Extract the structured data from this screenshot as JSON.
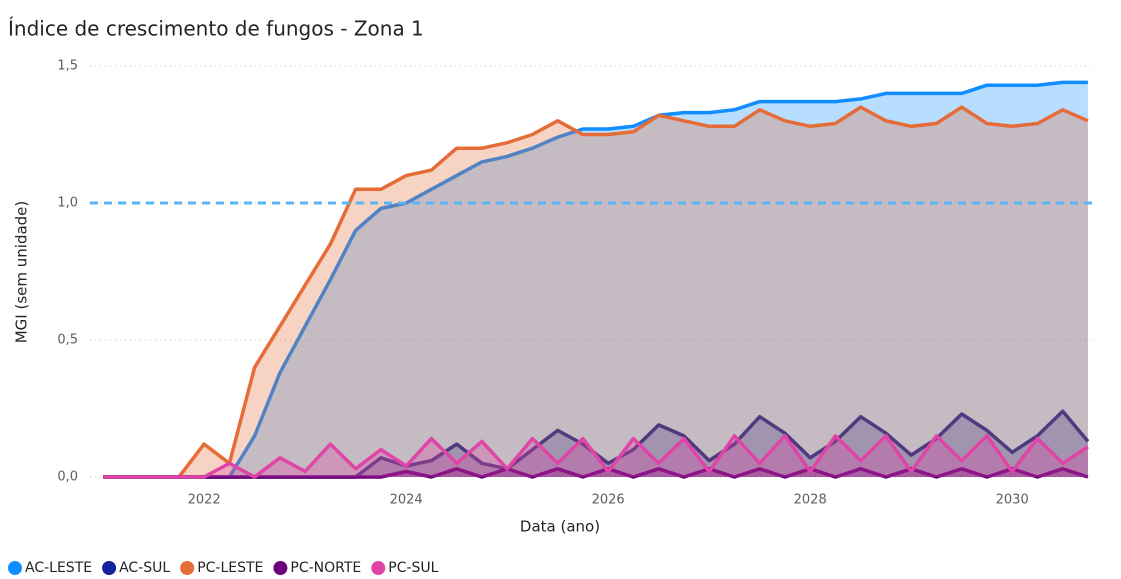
{
  "chart_data": {
    "type": "area",
    "title": "Índice de crescimento de fungos - Zona 1",
    "x_label": "Data (ano)",
    "y_label": "MGI (sem unidade)",
    "x": [
      2021,
      2021.25,
      2021.5,
      2021.75,
      2022,
      2022.25,
      2022.5,
      2022.75,
      2023,
      2023.25,
      2023.5,
      2023.75,
      2024,
      2024.25,
      2024.5,
      2024.75,
      2025,
      2025.25,
      2025.5,
      2025.75,
      2026,
      2026.25,
      2026.5,
      2026.75,
      2027,
      2027.25,
      2027.5,
      2027.75,
      2028,
      2028.25,
      2028.5,
      2028.75,
      2029,
      2029.25,
      2029.5,
      2029.75,
      2030,
      2030.25,
      2030.5,
      2030.75
    ],
    "series": [
      {
        "name": "AC-LESTE",
        "color": "#118DFF",
        "values": [
          0,
          0,
          0,
          0,
          0,
          0,
          0.15,
          0.38,
          0.55,
          0.72,
          0.9,
          0.98,
          1.0,
          1.05,
          1.1,
          1.15,
          1.17,
          1.2,
          1.24,
          1.27,
          1.27,
          1.28,
          1.32,
          1.33,
          1.33,
          1.34,
          1.37,
          1.37,
          1.37,
          1.37,
          1.38,
          1.4,
          1.4,
          1.4,
          1.4,
          1.43,
          1.43,
          1.43,
          1.44,
          1.44
        ]
      },
      {
        "name": "AC-SUL",
        "color": "#12239E",
        "values": [
          0,
          0,
          0,
          0,
          0,
          0,
          0,
          0,
          0,
          0,
          0,
          0.07,
          0.04,
          0.06,
          0.12,
          0.05,
          0.03,
          0.1,
          0.17,
          0.12,
          0.05,
          0.1,
          0.19,
          0.15,
          0.06,
          0.12,
          0.22,
          0.16,
          0.07,
          0.13,
          0.22,
          0.16,
          0.08,
          0.14,
          0.23,
          0.17,
          0.09,
          0.15,
          0.24,
          0.13
        ]
      },
      {
        "name": "PC-LESTE",
        "color": "#E66C37",
        "values": [
          0,
          0,
          0,
          0,
          0.12,
          0.05,
          0.4,
          0.55,
          0.7,
          0.85,
          1.05,
          1.05,
          1.1,
          1.12,
          1.2,
          1.2,
          1.22,
          1.25,
          1.3,
          1.25,
          1.25,
          1.26,
          1.32,
          1.3,
          1.28,
          1.28,
          1.34,
          1.3,
          1.28,
          1.29,
          1.35,
          1.3,
          1.28,
          1.29,
          1.35,
          1.29,
          1.28,
          1.29,
          1.34,
          1.3
        ]
      },
      {
        "name": "PC-NORTE",
        "color": "#6B007B",
        "values": [
          0,
          0,
          0,
          0,
          0,
          0,
          0,
          0,
          0,
          0,
          0,
          0,
          0.02,
          0,
          0.03,
          0,
          0.03,
          0,
          0.03,
          0,
          0.03,
          0,
          0.03,
          0,
          0.03,
          0,
          0.03,
          0,
          0.03,
          0,
          0.03,
          0,
          0.03,
          0,
          0.03,
          0,
          0.03,
          0,
          0.03,
          0
        ]
      },
      {
        "name": "PC-SUL",
        "color": "#E044A7",
        "values": [
          0,
          0,
          0,
          0,
          0,
          0.05,
          0,
          0.07,
          0.02,
          0.12,
          0.03,
          0.1,
          0.04,
          0.14,
          0.05,
          0.13,
          0.03,
          0.14,
          0.05,
          0.14,
          0.02,
          0.14,
          0.05,
          0.14,
          0.02,
          0.15,
          0.05,
          0.15,
          0.02,
          0.15,
          0.06,
          0.15,
          0.02,
          0.15,
          0.06,
          0.15,
          0.02,
          0.14,
          0.05,
          0.11
        ]
      }
    ],
    "xlim": [
      2020.87,
      2030.8
    ],
    "xticks": [
      2022,
      2024,
      2026,
      2028,
      2030
    ],
    "ylim": [
      0,
      1.5
    ],
    "yticks": [
      {
        "value": 0,
        "label": "0,0"
      },
      {
        "value": 0.5,
        "label": "0,5"
      },
      {
        "value": 1,
        "label": "1,0"
      },
      {
        "value": 1.5,
        "label": "1,5"
      }
    ],
    "reference_line": 1,
    "reference_color": "#5BB5F5",
    "grid": true,
    "legend": "bottom-left"
  }
}
